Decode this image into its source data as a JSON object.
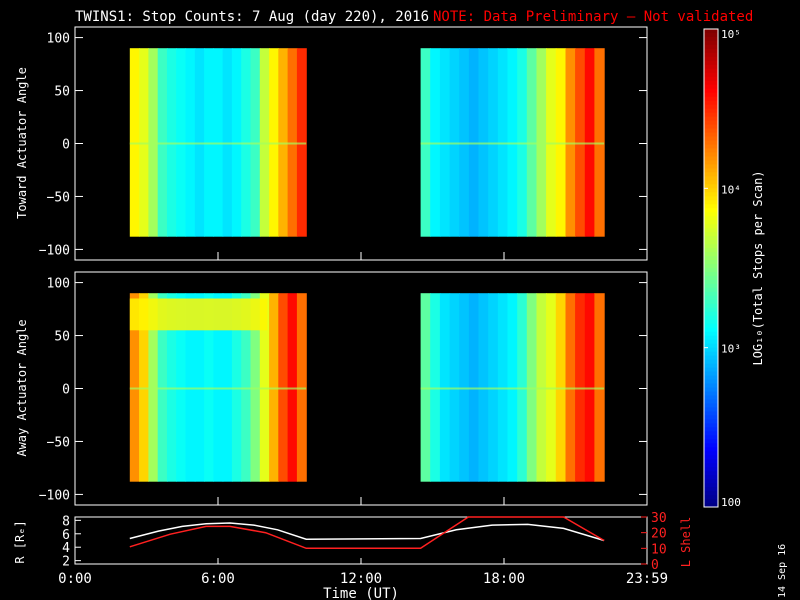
{
  "header": {
    "title": "TWINS1: Stop Counts:  7 Aug (day 220), 2016",
    "note": "NOTE: Data Preliminary – Not validated",
    "note_color": "#ff0000"
  },
  "chart_data": [
    {
      "type": "heatmap",
      "panel": "toward",
      "ylabel": "Toward Actuator Angle",
      "ylim": [
        -110,
        110
      ],
      "y_ticks": [
        "100",
        "50",
        "0",
        "−50",
        "−100"
      ],
      "y_tick_values": [
        100,
        50,
        0,
        -50,
        -100
      ],
      "xlim_hours": [
        0,
        24
      ],
      "data_y_range": [
        -88,
        90
      ],
      "segments": [
        {
          "start_hour": 2.3,
          "end_hour": 9.7,
          "log10_profile": [
            3.9,
            3.8,
            3.6,
            3.3,
            3.2,
            3.15,
            3.1,
            3.05,
            3.1,
            3.1,
            3.05,
            3.1,
            3.2,
            3.3,
            3.7,
            3.9,
            4.1,
            4.3,
            4.5
          ]
        },
        {
          "start_hour": 14.5,
          "end_hour": 22.2,
          "log10_profile": [
            3.3,
            3.1,
            3.05,
            3.0,
            2.95,
            2.9,
            2.95,
            3.0,
            3.05,
            3.1,
            3.2,
            3.4,
            3.6,
            3.8,
            3.9,
            4.2,
            4.4,
            4.6,
            4.3
          ]
        }
      ]
    },
    {
      "type": "heatmap",
      "panel": "away",
      "ylabel": "Away Actuator Angle",
      "ylim": [
        -110,
        110
      ],
      "y_ticks": [
        "100",
        "50",
        "0",
        "−50",
        "−100"
      ],
      "y_tick_values": [
        100,
        50,
        0,
        -50,
        -100
      ],
      "xlim_hours": [
        0,
        24
      ],
      "data_y_range": [
        -88,
        90
      ],
      "segments": [
        {
          "start_hour": 2.3,
          "end_hour": 9.7,
          "log10_profile": [
            4.2,
            4.0,
            3.6,
            3.3,
            3.2,
            3.15,
            3.1,
            3.1,
            3.15,
            3.1,
            3.1,
            3.2,
            3.3,
            3.5,
            3.8,
            4.1,
            4.4,
            4.6,
            4.3
          ],
          "band_y_range": [
            55,
            85
          ],
          "band_log10": 3.9
        },
        {
          "start_hour": 14.5,
          "end_hour": 22.2,
          "log10_profile": [
            3.4,
            3.2,
            3.05,
            3.0,
            2.95,
            2.9,
            2.95,
            3.0,
            3.05,
            3.1,
            3.25,
            3.5,
            3.7,
            3.8,
            4.0,
            4.3,
            4.5,
            4.6,
            4.3
          ]
        }
      ]
    },
    {
      "type": "line",
      "panel": "orbit",
      "left_ylabel": "R [Rₑ]",
      "right_ylabel": "L Shell",
      "left_ylim": [
        1.5,
        8.5
      ],
      "left_ticks": [
        "8",
        "6",
        "4",
        "2"
      ],
      "left_tick_values": [
        8,
        6,
        4,
        2
      ],
      "right_ylim": [
        0,
        30
      ],
      "right_ticks": [
        "30",
        "20",
        "10",
        "0"
      ],
      "right_tick_values": [
        30,
        20,
        10,
        0
      ],
      "xlabel": "Time (UT)",
      "x_ticks": [
        "0:00",
        "6:00",
        "12:00",
        "18:00",
        "23:59"
      ],
      "x_tick_hours": [
        0,
        6,
        12,
        18,
        24
      ],
      "series": [
        {
          "axis": "left",
          "color": "#ffffff",
          "x": [
            2.3,
            3.5,
            4.5,
            5.5,
            6.5,
            7.5,
            8.5,
            9.7,
            14.5,
            16.0,
            17.5,
            19.0,
            20.5,
            22.2
          ],
          "y": [
            5.3,
            6.4,
            7.1,
            7.5,
            7.6,
            7.3,
            6.6,
            5.2,
            5.3,
            6.6,
            7.3,
            7.4,
            6.8,
            5.0
          ]
        },
        {
          "axis": "right",
          "color": "#ff2020",
          "x": [
            2.3,
            4.0,
            5.5,
            6.5,
            8.0,
            9.7,
            14.5,
            16.5,
            20.5,
            22.2
          ],
          "y": [
            11,
            19,
            24,
            24,
            20,
            10,
            10,
            30,
            30,
            15
          ]
        }
      ]
    },
    {
      "type": "colorbar",
      "label": "LOG₁₀(Total Stops per Scan)",
      "tick_labels": [
        {
          "text": "10⁵",
          "log10": 5
        },
        {
          "text": "10⁴",
          "log10": 4
        },
        {
          "text": "10³",
          "log10": 3
        },
        {
          "text": "100",
          "log10": 2
        }
      ],
      "range_log10": [
        2,
        5
      ]
    }
  ],
  "footer": {
    "date_stamp": "14 Sep 16"
  }
}
